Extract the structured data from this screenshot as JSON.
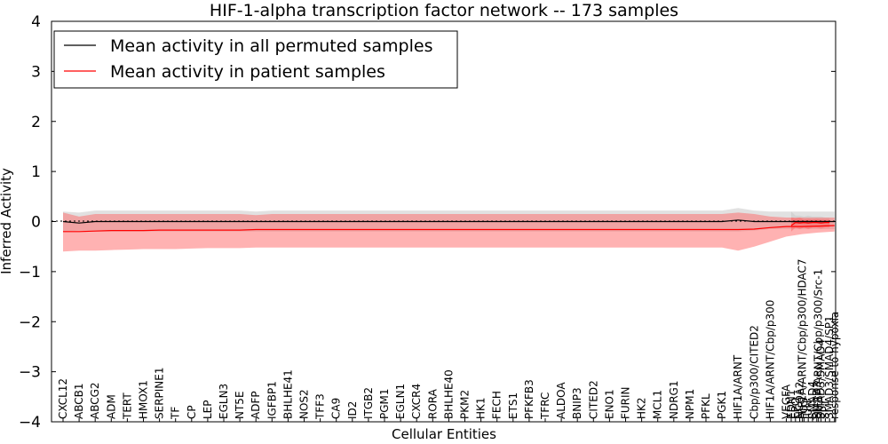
{
  "chart_data": {
    "type": "line",
    "title": "HIF-1-alpha transcription factor network -- 173 samples",
    "xlabel": "Cellular Entities",
    "ylabel": "Inferred Activity",
    "ylim": [
      -4,
      4
    ],
    "yticks": [
      4,
      3,
      2,
      1,
      0,
      -1,
      -2,
      -3,
      -4
    ],
    "ytick_labels": [
      "4",
      "3",
      "2",
      "1",
      "0",
      "−1",
      "−2",
      "−3",
      "−4"
    ],
    "grid": false,
    "legend_position": "top-left",
    "zero_line": "dotted",
    "categories": [
      "CXCL12",
      "ABCB1",
      "ABCG2",
      "ADM",
      "TERT",
      "HMOX1",
      "SERPINE1",
      "TF",
      "CP",
      "LEP",
      "EGLN3",
      "NT5E",
      "ADFP",
      "IGFBP1",
      "BHLHE41",
      "NOS2",
      "TFF3",
      "CA9",
      "ID2",
      "ITGB2",
      "PGM1",
      "EGLN1",
      "CXCR4",
      "RORA",
      "BHLHE40",
      "PKM2",
      "HK1",
      "FECH",
      "ETS1",
      "PFKFB3",
      "TFRC",
      "ALDOA",
      "BNIP3",
      "CITED2",
      "ENO1",
      "FURIN",
      "HK2",
      "MCL1",
      "NDRG1",
      "NPM1",
      "PFKL",
      "PGK1",
      "HIF1A/ARNT",
      "Cbp/p300/CITED2",
      "HIF1A/ARNT/Cbp/p300",
      "VEGFA",
      "HIF1A/ARNT/Cbp/p300/HDAC7",
      "HIF1A/ARNT/Cbp/p300/Src-1",
      "response to hypoxia",
      "EDN1",
      "EPO",
      "NCOA2",
      "FOS",
      "JUN",
      "SMAD4",
      "SMAD3",
      "SMAD3/SMAD4",
      "SP1",
      "SMAD3/SMAD4/SP1"
    ],
    "series": [
      {
        "name": "Mean activity in all permuted samples",
        "color": "#000000",
        "values": [
          0.0,
          -0.03,
          0.0,
          0.0,
          0.0,
          0.0,
          0.0,
          0.0,
          0.0,
          0.0,
          0.0,
          0.0,
          0.0,
          0.0,
          0.0,
          0.0,
          0.0,
          0.0,
          0.0,
          0.0,
          0.0,
          0.0,
          0.0,
          0.0,
          0.0,
          0.0,
          0.0,
          0.0,
          0.0,
          0.0,
          0.0,
          0.0,
          0.0,
          0.0,
          0.0,
          0.0,
          0.0,
          0.0,
          0.0,
          0.0,
          0.0,
          0.0,
          0.03,
          0.0,
          0.0,
          0.0,
          0.0,
          0.0,
          0.0,
          0.0,
          0.0,
          0.0,
          0.0,
          0.0,
          0.0,
          0.0,
          0.0,
          0.0,
          0.0
        ],
        "lower": [
          -0.2,
          -0.18,
          -0.2,
          -0.2,
          -0.2,
          -0.2,
          -0.2,
          -0.2,
          -0.2,
          -0.2,
          -0.2,
          -0.2,
          -0.2,
          -0.2,
          -0.2,
          -0.2,
          -0.2,
          -0.2,
          -0.2,
          -0.2,
          -0.2,
          -0.2,
          -0.2,
          -0.2,
          -0.2,
          -0.2,
          -0.2,
          -0.2,
          -0.2,
          -0.2,
          -0.2,
          -0.2,
          -0.2,
          -0.2,
          -0.2,
          -0.2,
          -0.2,
          -0.2,
          -0.2,
          -0.2,
          -0.2,
          -0.2,
          -0.2,
          -0.18,
          -0.15,
          -0.15,
          -0.15,
          -0.15,
          -0.15,
          -0.15,
          -0.08,
          -0.05,
          -0.08,
          -0.1,
          -0.08,
          -0.08,
          -0.05,
          -0.08,
          -0.1
        ],
        "upper": [
          0.2,
          0.18,
          0.22,
          0.22,
          0.22,
          0.22,
          0.22,
          0.22,
          0.22,
          0.22,
          0.22,
          0.22,
          0.2,
          0.22,
          0.22,
          0.22,
          0.22,
          0.22,
          0.22,
          0.22,
          0.22,
          0.22,
          0.22,
          0.22,
          0.22,
          0.22,
          0.22,
          0.22,
          0.22,
          0.22,
          0.22,
          0.22,
          0.22,
          0.22,
          0.22,
          0.22,
          0.22,
          0.22,
          0.22,
          0.22,
          0.22,
          0.22,
          0.27,
          0.22,
          0.2,
          0.2,
          0.2,
          0.2,
          0.2,
          0.2,
          0.12,
          0.12,
          0.1,
          0.12,
          0.1,
          0.1,
          0.1,
          0.08,
          0.08
        ]
      },
      {
        "name": "Mean activity in patient samples",
        "color": "#ff0000",
        "values": [
          -0.2,
          -0.2,
          -0.19,
          -0.18,
          -0.18,
          -0.18,
          -0.17,
          -0.17,
          -0.17,
          -0.17,
          -0.17,
          -0.17,
          -0.16,
          -0.16,
          -0.16,
          -0.16,
          -0.16,
          -0.16,
          -0.16,
          -0.16,
          -0.16,
          -0.16,
          -0.16,
          -0.16,
          -0.16,
          -0.16,
          -0.16,
          -0.16,
          -0.16,
          -0.16,
          -0.16,
          -0.16,
          -0.16,
          -0.16,
          -0.16,
          -0.16,
          -0.16,
          -0.16,
          -0.16,
          -0.16,
          -0.16,
          -0.16,
          -0.16,
          -0.15,
          -0.12,
          -0.1,
          -0.1,
          -0.09,
          -0.08,
          -0.08,
          -0.02,
          -0.03,
          -0.02,
          -0.03,
          -0.02,
          -0.02,
          -0.03,
          -0.02,
          -0.02
        ],
        "lower": [
          -0.6,
          -0.58,
          -0.58,
          -0.57,
          -0.56,
          -0.55,
          -0.55,
          -0.55,
          -0.54,
          -0.53,
          -0.53,
          -0.53,
          -0.52,
          -0.52,
          -0.52,
          -0.52,
          -0.52,
          -0.52,
          -0.52,
          -0.52,
          -0.52,
          -0.52,
          -0.52,
          -0.52,
          -0.52,
          -0.52,
          -0.52,
          -0.52,
          -0.52,
          -0.52,
          -0.52,
          -0.52,
          -0.52,
          -0.52,
          -0.52,
          -0.52,
          -0.52,
          -0.52,
          -0.52,
          -0.52,
          -0.52,
          -0.52,
          -0.58,
          -0.5,
          -0.4,
          -0.3,
          -0.25,
          -0.22,
          -0.2,
          -0.2,
          -0.12,
          -0.15,
          -0.12,
          -0.15,
          -0.12,
          -0.12,
          -0.14,
          -0.12,
          -0.12
        ],
        "upper": [
          0.18,
          0.1,
          0.15,
          0.15,
          0.15,
          0.15,
          0.15,
          0.15,
          0.15,
          0.15,
          0.15,
          0.15,
          0.13,
          0.15,
          0.15,
          0.15,
          0.15,
          0.15,
          0.15,
          0.15,
          0.15,
          0.15,
          0.15,
          0.15,
          0.15,
          0.15,
          0.15,
          0.15,
          0.15,
          0.15,
          0.15,
          0.15,
          0.15,
          0.15,
          0.15,
          0.15,
          0.15,
          0.15,
          0.15,
          0.15,
          0.15,
          0.15,
          0.18,
          0.15,
          0.1,
          0.08,
          0.08,
          0.08,
          0.08,
          0.08,
          0.06,
          0.08,
          0.04,
          0.05,
          0.04,
          0.05,
          0.04,
          0.04,
          0.04
        ]
      }
    ]
  }
}
